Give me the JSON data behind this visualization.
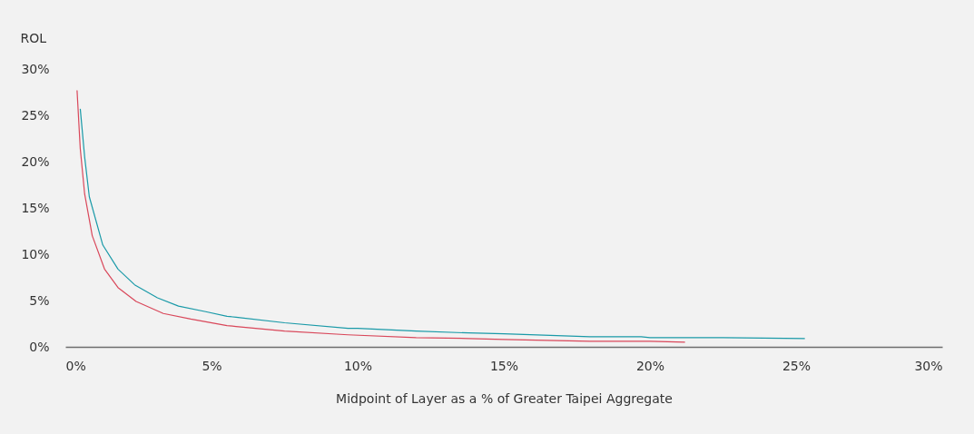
{
  "chart_data": {
    "type": "line",
    "xlabel": "Midpoint of Layer as a % of Greater Taipei Aggregate",
    "ylabel": "ROL",
    "xlim": [
      0,
      30
    ],
    "ylim": [
      0,
      30
    ],
    "xticks": [
      {
        "value": 0,
        "label": "0%"
      },
      {
        "value": 5,
        "label": "5%"
      },
      {
        "value": 10,
        "label": "10%"
      },
      {
        "value": 15,
        "label": "15%"
      },
      {
        "value": 20,
        "label": "20%"
      },
      {
        "value": 25,
        "label": "25%"
      },
      {
        "value": 30,
        "label": "30%"
      }
    ],
    "yticks": [
      {
        "value": 0,
        "label": "0%"
      },
      {
        "value": 5,
        "label": "5%"
      },
      {
        "value": 10,
        "label": "10%"
      },
      {
        "value": 15,
        "label": "15%"
      },
      {
        "value": 20,
        "label": "20%"
      },
      {
        "value": 25,
        "label": "25%"
      },
      {
        "value": 30,
        "label": "30%"
      }
    ],
    "grid": false,
    "marker": "none",
    "line_style": "solid",
    "series": [
      {
        "color": "#1a9aa8",
        "x": [
          0.51,
          0.66,
          0.82,
          1.28,
          1.8,
          2.37,
          3.15,
          3.87,
          4.8,
          5.53,
          5.84,
          7.5,
          9.67,
          10,
          12,
          13.8,
          15,
          17.95,
          19.7,
          20,
          22.5,
          25.3
        ],
        "values": [
          25.7,
          20.5,
          16.2,
          11,
          8.4,
          6.7,
          5.3,
          4.4,
          3.8,
          3.3,
          3.2,
          2.6,
          2,
          2,
          1.7,
          1.5,
          1.4,
          1.1,
          1.1,
          1,
          1,
          0.9
        ]
      },
      {
        "color": "#d9475a",
        "x": [
          0.4,
          0.51,
          0.66,
          0.92,
          1.34,
          1.8,
          2.42,
          3.35,
          4.29,
          5.53,
          5.84,
          7.5,
          9.67,
          12,
          13.8,
          15,
          17.95,
          20,
          21.2
        ],
        "values": [
          27.7,
          21.4,
          16.5,
          12,
          8.4,
          6.4,
          4.9,
          3.6,
          3,
          2.3,
          2.2,
          1.7,
          1.3,
          1,
          0.9,
          0.8,
          0.6,
          0.6,
          0.5
        ]
      }
    ]
  }
}
